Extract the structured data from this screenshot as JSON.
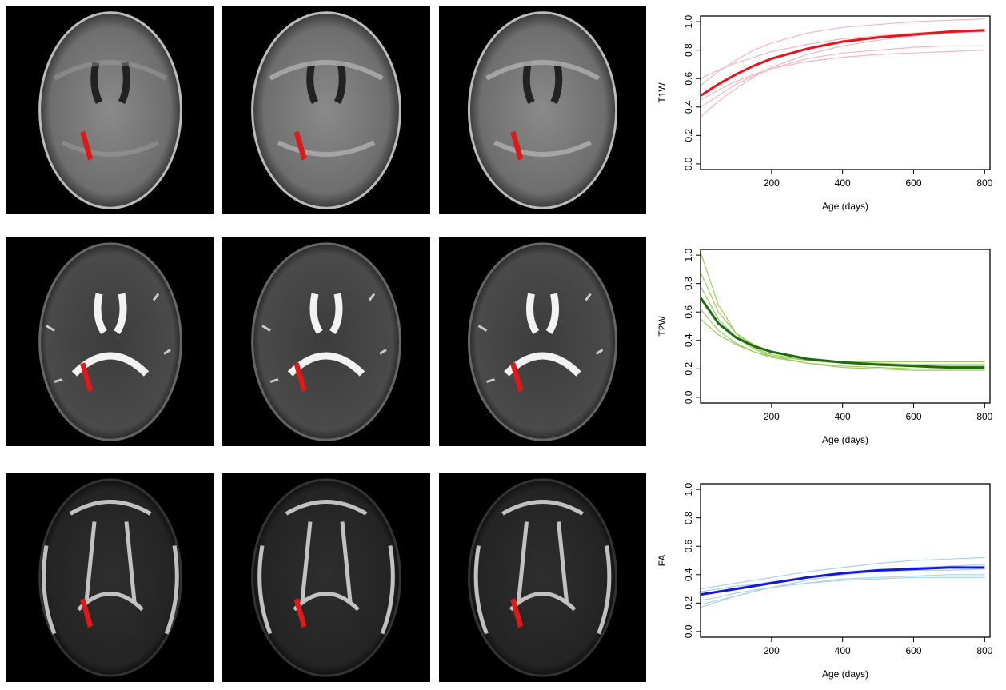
{
  "chart_data": [
    {
      "type": "line",
      "ylabel": "T1W",
      "xlabel": "Age (days)",
      "x": [
        0,
        50,
        100,
        150,
        200,
        300,
        400,
        500,
        600,
        700,
        800
      ],
      "series": [
        {
          "color": "#f4b6c2",
          "values": [
            0.55,
            0.65,
            0.73,
            0.8,
            0.85,
            0.92,
            0.96,
            0.98,
            1.0,
            1.01,
            1.02
          ]
        },
        {
          "color": "#f4b6c2",
          "values": [
            0.4,
            0.48,
            0.56,
            0.62,
            0.67,
            0.74,
            0.78,
            0.8,
            0.82,
            0.83,
            0.83
          ]
        },
        {
          "color": "#f4b6c2",
          "values": [
            0.33,
            0.44,
            0.53,
            0.61,
            0.68,
            0.77,
            0.83,
            0.87,
            0.9,
            0.92,
            0.93
          ]
        },
        {
          "color": "#f4b6c2",
          "values": [
            0.6,
            0.66,
            0.71,
            0.75,
            0.79,
            0.84,
            0.88,
            0.9,
            0.92,
            0.93,
            0.94
          ]
        },
        {
          "color": "#f4b6c2",
          "values": [
            0.45,
            0.52,
            0.58,
            0.63,
            0.67,
            0.72,
            0.75,
            0.77,
            0.78,
            0.79,
            0.8
          ]
        },
        {
          "color": "#e8141c",
          "values": [
            0.48,
            0.56,
            0.63,
            0.69,
            0.74,
            0.81,
            0.86,
            0.89,
            0.91,
            0.93,
            0.94
          ]
        }
      ],
      "xlim": [
        0,
        815
      ],
      "ylim": [
        -0.04,
        1.04
      ],
      "xticks": [
        200,
        400,
        600,
        800
      ],
      "yticks": [
        {
          "value": 0,
          "label": "0.0"
        },
        0.2,
        0.4,
        0.6,
        0.8,
        {
          "value": 1,
          "label": "1.0"
        }
      ]
    },
    {
      "type": "line",
      "ylabel": "T2W",
      "xlabel": "Age (days)",
      "x": [
        0,
        50,
        100,
        150,
        200,
        300,
        400,
        500,
        600,
        700,
        800
      ],
      "series": [
        {
          "color": "#9ccc5a",
          "values": [
            1.02,
            0.65,
            0.45,
            0.35,
            0.3,
            0.26,
            0.24,
            0.23,
            0.22,
            0.22,
            0.22
          ]
        },
        {
          "color": "#9ccc5a",
          "values": [
            0.88,
            0.6,
            0.45,
            0.37,
            0.32,
            0.27,
            0.25,
            0.24,
            0.23,
            0.23,
            0.23
          ]
        },
        {
          "color": "#9ccc5a",
          "values": [
            0.62,
            0.47,
            0.38,
            0.32,
            0.28,
            0.24,
            0.22,
            0.21,
            0.2,
            0.2,
            0.2
          ]
        },
        {
          "color": "#9ccc5a",
          "values": [
            0.55,
            0.44,
            0.37,
            0.32,
            0.29,
            0.26,
            0.25,
            0.25,
            0.25,
            0.25,
            0.25
          ]
        },
        {
          "color": "#9ccc5a",
          "values": [
            0.78,
            0.55,
            0.42,
            0.34,
            0.29,
            0.24,
            0.21,
            0.2,
            0.19,
            0.19,
            0.19
          ]
        },
        {
          "color": "#1e6b12",
          "values": [
            0.7,
            0.52,
            0.42,
            0.36,
            0.32,
            0.27,
            0.245,
            0.23,
            0.22,
            0.21,
            0.21
          ]
        }
      ],
      "xlim": [
        0,
        815
      ],
      "ylim": [
        -0.04,
        1.04
      ],
      "xticks": [
        200,
        400,
        600,
        800
      ],
      "yticks": [
        {
          "value": 0,
          "label": "0.0"
        },
        0.2,
        0.4,
        0.6,
        0.8,
        {
          "value": 1,
          "label": "1.0"
        }
      ]
    },
    {
      "type": "line",
      "ylabel": "FA",
      "xlabel": "Age (days)",
      "x": [
        0,
        50,
        100,
        150,
        200,
        300,
        400,
        500,
        600,
        700,
        800
      ],
      "series": [
        {
          "color": "#a8d4e6",
          "values": [
            0.17,
            0.21,
            0.25,
            0.28,
            0.31,
            0.36,
            0.4,
            0.43,
            0.45,
            0.46,
            0.47
          ]
        },
        {
          "color": "#a8d4e6",
          "values": [
            0.3,
            0.32,
            0.34,
            0.36,
            0.38,
            0.42,
            0.45,
            0.48,
            0.5,
            0.51,
            0.52
          ]
        },
        {
          "color": "#a8d4e6",
          "values": [
            0.22,
            0.24,
            0.27,
            0.29,
            0.31,
            0.34,
            0.37,
            0.38,
            0.39,
            0.4,
            0.4
          ]
        },
        {
          "color": "#a8d4e6",
          "values": [
            0.28,
            0.3,
            0.32,
            0.33,
            0.35,
            0.38,
            0.4,
            0.42,
            0.43,
            0.43,
            0.44
          ]
        },
        {
          "color": "#a8d4e6",
          "values": [
            0.19,
            0.22,
            0.25,
            0.28,
            0.31,
            0.34,
            0.36,
            0.37,
            0.38,
            0.38,
            0.38
          ]
        },
        {
          "color": "#1515e0",
          "values": [
            0.26,
            0.28,
            0.3,
            0.32,
            0.34,
            0.38,
            0.41,
            0.43,
            0.44,
            0.45,
            0.45
          ]
        }
      ],
      "xlim": [
        0,
        815
      ],
      "ylim": [
        -0.04,
        1.04
      ],
      "xticks": [
        200,
        400,
        600,
        800
      ],
      "yticks": [
        {
          "value": 0,
          "label": "0.0"
        },
        0.2,
        0.4,
        0.6,
        0.8,
        {
          "value": 1,
          "label": "1.0"
        }
      ]
    }
  ]
}
